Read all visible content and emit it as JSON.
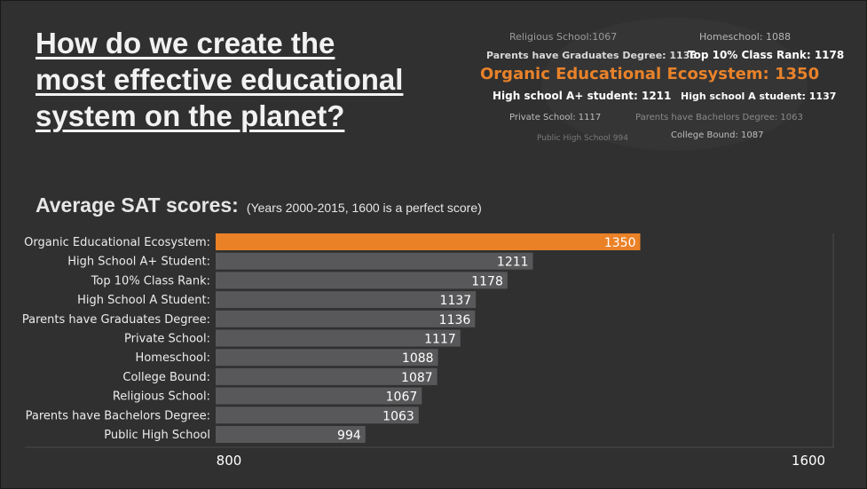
{
  "title_lines": [
    "How do we create the",
    "most effective educational",
    "system on the planet?"
  ],
  "subtitle": "Average SAT scores:",
  "subtitle_note": "(Years 2000-2015, 1600 is a perfect score)",
  "word_cloud": [
    {
      "text": "Religious School:1067",
      "color": "#9a9a9a",
      "size": 11,
      "weight": "normal"
    },
    {
      "text": "Homeschool: 1088",
      "color": "#b5b5b5",
      "size": 11,
      "weight": "normal"
    },
    {
      "text": "Parents have Graduates Degree: 1136",
      "color": "#d8d8d8",
      "size": 11,
      "weight": "bold"
    },
    {
      "text": "Top 10% Class Rank: 1178",
      "color": "#ffffff",
      "size": 12,
      "weight": "bold"
    },
    {
      "text": "Organic Educational Ecosystem: 1350",
      "color": "#e8822a",
      "size": 18,
      "weight": "bold"
    },
    {
      "text": "High school A+ student: 1211",
      "color": "#ffffff",
      "size": 12,
      "weight": "bold"
    },
    {
      "text": "High school A student: 1137",
      "color": "#ffffff",
      "size": 11,
      "weight": "bold"
    },
    {
      "text": "Private School: 1117",
      "color": "#bdbdbd",
      "size": 10,
      "weight": "normal"
    },
    {
      "text": "Parents have Bachelors Degree: 1063",
      "color": "#8a8a8a",
      "size": 10,
      "weight": "normal"
    },
    {
      "text": "Public High School 994",
      "color": "#7a7a7a",
      "size": 9,
      "weight": "normal"
    },
    {
      "text": "College Bound: 1087",
      "color": "#bdbdbd",
      "size": 10,
      "weight": "normal"
    }
  ],
  "chart_data": {
    "type": "bar",
    "orientation": "horizontal",
    "categories": [
      "Organic Educational Ecosystem:",
      "High School A+ Student:",
      "Top 10% Class Rank:",
      "High School A Student:",
      "Parents have Graduates Degree:",
      "Private School:",
      "Homeschool:",
      "College Bound:",
      "Religious School:",
      "Parents have Bachelors Degree:",
      "Public High School"
    ],
    "values": [
      1350,
      1211,
      1178,
      1137,
      1136,
      1117,
      1088,
      1087,
      1067,
      1063,
      994
    ],
    "xlim": [
      800,
      1600
    ],
    "x_tick_labels": [
      "800",
      "1600"
    ],
    "highlight_index": 0,
    "colors": {
      "highlight": "#ea8127",
      "bar": "#58585a",
      "label": "#ececec",
      "value": "#ffffff",
      "axis": "#4a4a4a"
    }
  }
}
